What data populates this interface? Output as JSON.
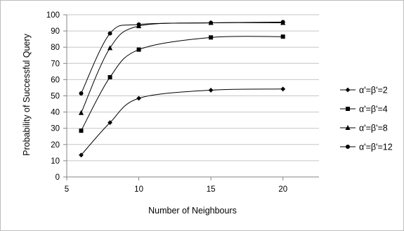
{
  "chart_data": {
    "type": "line",
    "xlabel": "Number of Neighbours",
    "ylabel": "Probability of Successful Query",
    "xlim": [
      5,
      22.5
    ],
    "ylim": [
      0,
      100
    ],
    "x_ticks": [
      5,
      10,
      15,
      20
    ],
    "y_ticks": [
      0,
      10,
      20,
      30,
      40,
      50,
      60,
      70,
      80,
      90,
      100
    ],
    "grid": "horizontal",
    "legend_position": "right",
    "x": [
      6,
      8,
      10,
      15,
      20
    ],
    "series": [
      {
        "name": "α'=β'=2",
        "marker": "diamond",
        "values": [
          13.5,
          33.5,
          48.5,
          53.5,
          54.2
        ]
      },
      {
        "name": "α'=β'=4",
        "marker": "square",
        "values": [
          28.5,
          61.5,
          78.5,
          86,
          86.5
        ]
      },
      {
        "name": "α'=β'=8",
        "marker": "triangle",
        "values": [
          39.5,
          79.5,
          93,
          95,
          95
        ]
      },
      {
        "name": "α'=β'=12",
        "marker": "circle",
        "values": [
          51.5,
          88.5,
          94,
          95,
          95.5
        ]
      }
    ]
  }
}
